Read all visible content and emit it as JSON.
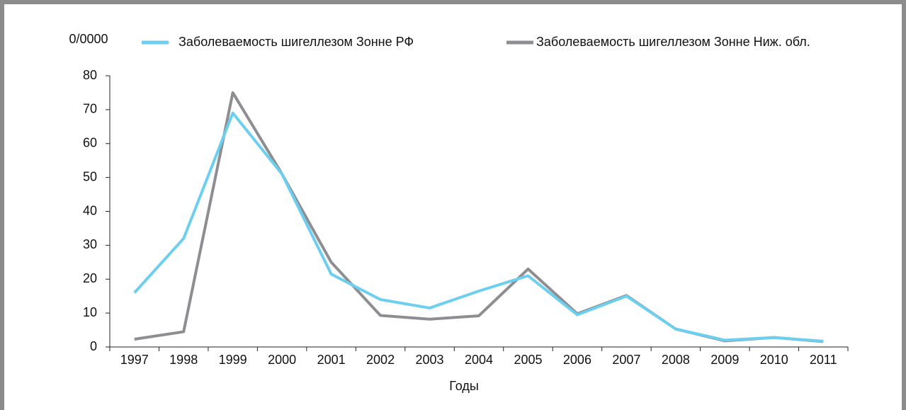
{
  "chart_data": {
    "type": "line",
    "y_label": "0/0000",
    "x_label": "Годы",
    "categories": [
      "1997",
      "1998",
      "1999",
      "2000",
      "2001",
      "2002",
      "2003",
      "2004",
      "2005",
      "2006",
      "2007",
      "2008",
      "2009",
      "2010",
      "2011"
    ],
    "series": [
      {
        "name": "Заболеваемость шигеллезом Зонне РФ",
        "color": "#6dcff0",
        "values": [
          16,
          32,
          69,
          51,
          21.5,
          14,
          11.5,
          16.5,
          21,
          9.5,
          15,
          5.3,
          2,
          2.8,
          1.7
        ]
      },
      {
        "name": "Заболеваемость шигеллезом Зонне Ниж. обл.",
        "color": "#8e8e92",
        "values": [
          2.3,
          4.5,
          75,
          51,
          25,
          9.3,
          8.2,
          9.2,
          23,
          9.8,
          15.2,
          5.3,
          1.8,
          2.8,
          1.6
        ]
      }
    ],
    "ylim": [
      0,
      80
    ],
    "yticks": [
      0,
      10,
      20,
      30,
      40,
      50,
      60,
      70,
      80
    ]
  }
}
